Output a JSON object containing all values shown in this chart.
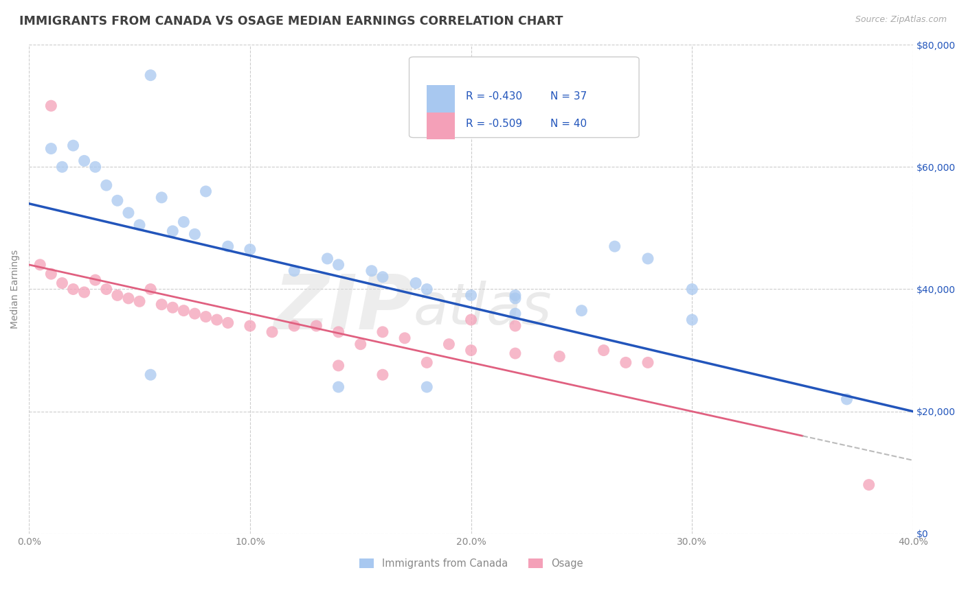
{
  "title": "IMMIGRANTS FROM CANADA VS OSAGE MEDIAN EARNINGS CORRELATION CHART",
  "source_text": "Source: ZipAtlas.com",
  "ylabel": "Median Earnings",
  "legend_label1": "Immigrants from Canada",
  "legend_label2": "Osage",
  "legend_r1": "R = -0.430",
  "legend_n1": "N = 37",
  "legend_r2": "R = -0.509",
  "legend_n2": "N = 40",
  "xlim": [
    0.0,
    0.4
  ],
  "ylim": [
    0,
    80000
  ],
  "x_ticks": [
    0.0,
    0.1,
    0.2,
    0.3,
    0.4
  ],
  "x_tick_labels": [
    "0.0%",
    "10.0%",
    "20.0%",
    "30.0%",
    "40.0%"
  ],
  "y_ticks": [
    0,
    20000,
    40000,
    60000,
    80000
  ],
  "y_tick_labels_right": [
    "$0",
    "$20,000",
    "$40,000",
    "$60,000",
    "$80,000"
  ],
  "color_blue": "#A8C8F0",
  "color_pink": "#F4A0B8",
  "line_blue": "#2255BB",
  "line_pink": "#E06080",
  "line_dash": "#BBBBBB",
  "background": "#FFFFFF",
  "grid_color": "#CCCCCC",
  "title_color": "#404040",
  "axis_label_color": "#888888",
  "legend_text_color": "#2255BB",
  "watermark_text": "ZIPatlas",
  "blue_intercept": 54000,
  "blue_slope": -85000,
  "pink_intercept": 44000,
  "pink_slope": -80000,
  "blue_scatter_x": [
    0.01,
    0.015,
    0.02,
    0.025,
    0.03,
    0.035,
    0.04,
    0.045,
    0.05,
    0.055,
    0.06,
    0.065,
    0.07,
    0.075,
    0.08,
    0.09,
    0.1,
    0.12,
    0.14,
    0.16,
    0.18,
    0.2,
    0.22,
    0.25,
    0.135,
    0.155,
    0.175,
    0.22,
    0.265,
    0.3,
    0.3,
    0.37,
    0.28,
    0.22,
    0.18,
    0.14,
    0.055
  ],
  "blue_scatter_y": [
    63000,
    60000,
    63500,
    61000,
    60000,
    57000,
    54500,
    52500,
    50500,
    75000,
    55000,
    49500,
    51000,
    49000,
    56000,
    47000,
    46500,
    43000,
    44000,
    42000,
    40000,
    39000,
    39000,
    36500,
    45000,
    43000,
    41000,
    38500,
    47000,
    35000,
    40000,
    22000,
    45000,
    36000,
    24000,
    24000,
    26000
  ],
  "pink_scatter_x": [
    0.005,
    0.01,
    0.015,
    0.02,
    0.025,
    0.03,
    0.035,
    0.04,
    0.045,
    0.05,
    0.055,
    0.06,
    0.065,
    0.07,
    0.075,
    0.08,
    0.085,
    0.09,
    0.1,
    0.11,
    0.12,
    0.13,
    0.14,
    0.15,
    0.16,
    0.17,
    0.19,
    0.2,
    0.22,
    0.24,
    0.26,
    0.28,
    0.14,
    0.16,
    0.18,
    0.2,
    0.22,
    0.27,
    0.38,
    0.01
  ],
  "pink_scatter_y": [
    44000,
    42500,
    41000,
    40000,
    39500,
    41500,
    40000,
    39000,
    38500,
    38000,
    40000,
    37500,
    37000,
    36500,
    36000,
    35500,
    35000,
    34500,
    34000,
    33000,
    34000,
    34000,
    33000,
    31000,
    33000,
    32000,
    31000,
    30000,
    34000,
    29000,
    30000,
    28000,
    27500,
    26000,
    28000,
    35000,
    29500,
    28000,
    8000,
    70000
  ]
}
